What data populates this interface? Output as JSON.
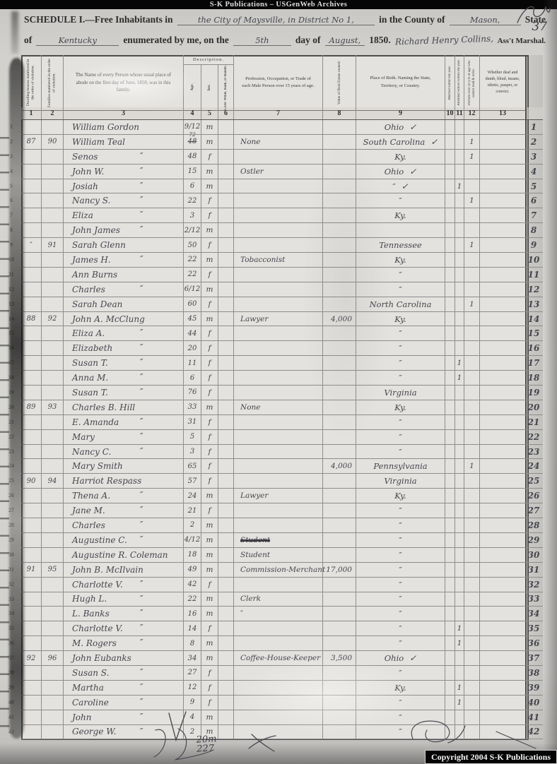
{
  "scan": {
    "archive_bar": "S-K Publications – USGenWeb Archives",
    "copyright": "Copyright 2004 S-K Publications",
    "page_number": "37",
    "tally_top": "20m",
    "tally_bottom": "227"
  },
  "title": {
    "printed_1": "SCHEDULE I.—Free Inhabitants in",
    "hw_place": "the City of Maysville, in District No 1,",
    "printed_2": "in the County of",
    "hw_county": "Mason,",
    "printed_3": "State",
    "printed_4": "of",
    "hw_state": "Kentucky",
    "printed_5": "enumerated by me, on the",
    "hw_day": "5th",
    "printed_6": "day of",
    "hw_month": "August,",
    "printed_7": "1850.",
    "hw_marshal": "Richard Henry Collins,",
    "printed_8": "Ass't Marshal."
  },
  "table": {
    "headers": {
      "dwelling": "Dwelling-houses numbered in the order of visitation.",
      "family": "Families numbered in the order of visitation.",
      "name": "The Name of every Person whose usual place of abode on the first day of June, 1850, was in this family.",
      "description": "Description.",
      "age": "Age.",
      "sex": "Sex.",
      "color": "Color. White, black, or mulatto.",
      "profession": "Profession, Occupation, or Trade of each Male Person over 15 years of age.",
      "value": "Value of Real Estate owned.",
      "birthplace": "Place of Birth. Naming the State, Territory, or Country.",
      "married": "Married within the year.",
      "school": "Attended School within the year.",
      "literacy": "Persons over 20 y'rs of age who cannot read & write.",
      "condition": "Whether deaf and dumb, blind, insane, idiotic, pauper, or convict."
    },
    "column_numbers": [
      "1",
      "2",
      "3",
      "4",
      "5",
      "6",
      "7",
      "8",
      "9",
      "10",
      "11",
      "12",
      "13"
    ],
    "rows": [
      {
        "n": "1",
        "name": "William Gordon",
        "age": "9/12",
        "sex": "m",
        "birth": "Ohio",
        "check": true
      },
      {
        "n": "2",
        "dw": "87",
        "fa": "90",
        "name": "William Teal",
        "age": "48",
        "age_sup": "72",
        "sex": "m",
        "occ": "None",
        "birth": "South Carolina",
        "check": true,
        "m12": "1"
      },
      {
        "n": "3",
        "name": "Senos",
        "ditto": true,
        "age": "48",
        "sex": "f",
        "birth": "Ky.",
        "m12": "1"
      },
      {
        "n": "4",
        "name": "John W.",
        "ditto": true,
        "age": "15",
        "sex": "m",
        "occ": "Ostler",
        "birth": "Ohio",
        "check": true
      },
      {
        "n": "5",
        "name": "Josiah",
        "ditto": true,
        "age": "6",
        "sex": "m",
        "birth": "″",
        "check": true,
        "m11": "1"
      },
      {
        "n": "6",
        "name": "Nancy S.",
        "ditto": true,
        "age": "22",
        "sex": "f",
        "birth": "″",
        "m12": "1"
      },
      {
        "n": "7",
        "name": "Eliza",
        "ditto": true,
        "age": "3",
        "sex": "f",
        "birth": "Ky."
      },
      {
        "n": "8",
        "name": "John James",
        "ditto": true,
        "age": "2/12",
        "sex": "m"
      },
      {
        "n": "9",
        "dw": "″",
        "fa": "91",
        "name": "Sarah Glenn",
        "age": "50",
        "sex": "f",
        "birth": "Tennessee",
        "m12": "1"
      },
      {
        "n": "10",
        "name": "James H.",
        "ditto": true,
        "age": "22",
        "sex": "m",
        "occ": "Tobacconist",
        "birth": "Ky."
      },
      {
        "n": "11",
        "name": "Ann Burns",
        "age": "22",
        "sex": "f",
        "birth": "″"
      },
      {
        "n": "12",
        "name": "Charles",
        "ditto": true,
        "age": "6/12",
        "sex": "m",
        "birth": "″"
      },
      {
        "n": "13",
        "name": "Sarah Dean",
        "age": "60",
        "sex": "f",
        "birth": "North Carolina",
        "m12": "1"
      },
      {
        "n": "14",
        "dw": "88",
        "fa": "92",
        "name": "John A. McClung",
        "age": "45",
        "sex": "m",
        "occ": "Lawyer",
        "val": "4,000",
        "birth": "Ky."
      },
      {
        "n": "15",
        "name": "Eliza A.",
        "ditto": true,
        "age": "44",
        "sex": "f",
        "birth": "″"
      },
      {
        "n": "16",
        "name": "Elizabeth",
        "ditto": true,
        "age": "20",
        "sex": "f",
        "birth": "″"
      },
      {
        "n": "17",
        "name": "Susan T.",
        "ditto": true,
        "age": "11",
        "sex": "f",
        "birth": "″",
        "m11": "1"
      },
      {
        "n": "18",
        "name": "Anna M.",
        "ditto": true,
        "age": "6",
        "sex": "f",
        "birth": "″",
        "m11": "1"
      },
      {
        "n": "19",
        "name": "Susan T.",
        "ditto": true,
        "age": "76",
        "sex": "f",
        "birth": "Virginia"
      },
      {
        "n": "20",
        "dw": "89",
        "fa": "93",
        "name": "Charles B. Hill",
        "age": "33",
        "sex": "m",
        "occ": "None",
        "birth": "Ky."
      },
      {
        "n": "21",
        "name": "E. Amanda",
        "ditto": true,
        "age": "31",
        "sex": "f",
        "birth": "″"
      },
      {
        "n": "22",
        "name": "Mary",
        "ditto": true,
        "age": "5",
        "sex": "f",
        "birth": "″"
      },
      {
        "n": "23",
        "name": "Nancy C.",
        "ditto": true,
        "age": "3",
        "sex": "f",
        "birth": "″"
      },
      {
        "n": "24",
        "name": "Mary Smith",
        "age": "65",
        "sex": "f",
        "val": "4,000",
        "birth": "Pennsylvania",
        "m12": "1"
      },
      {
        "n": "25",
        "dw": "90",
        "fa": "94",
        "name": "Harriot Respass",
        "age": "57",
        "sex": "f",
        "birth": "Virginia"
      },
      {
        "n": "26",
        "name": "Thena A.",
        "ditto": true,
        "age": "24",
        "sex": "m",
        "occ": "Lawyer",
        "birth": "Ky."
      },
      {
        "n": "27",
        "name": "Jane M.",
        "ditto": true,
        "age": "21",
        "sex": "f",
        "birth": "″"
      },
      {
        "n": "28",
        "name": "Charles",
        "ditto": true,
        "age": "2",
        "sex": "m",
        "birth": "″"
      },
      {
        "n": "29",
        "name": "Augustine C.",
        "ditto": true,
        "age": "4/12",
        "sex": "m",
        "occ": "Student",
        "occ_struck": true,
        "birth": "″"
      },
      {
        "n": "30",
        "name": "Augustine R. Coleman",
        "age": "18",
        "sex": "m",
        "occ": "Student",
        "birth": "″"
      },
      {
        "n": "31",
        "dw": "91",
        "fa": "95",
        "name": "John B. McIlvain",
        "age": "49",
        "sex": "m",
        "occ": "Commission-Merchant",
        "val": "17,000",
        "birth": "″"
      },
      {
        "n": "32",
        "name": "Charlotte V.",
        "ditto": true,
        "age": "42",
        "sex": "f",
        "birth": "″"
      },
      {
        "n": "33",
        "name": "Hugh L.",
        "ditto": true,
        "age": "22",
        "sex": "m",
        "occ": "Clerk",
        "birth": "″"
      },
      {
        "n": "34",
        "name": "L. Banks",
        "ditto": true,
        "age": "16",
        "sex": "m",
        "occ": "″",
        "birth": "″"
      },
      {
        "n": "35",
        "name": "Charlotte V.",
        "ditto": true,
        "age": "14",
        "sex": "f",
        "birth": "″",
        "m11": "1"
      },
      {
        "n": "36",
        "name": "M. Rogers",
        "ditto": true,
        "age": "8",
        "sex": "m",
        "birth": "″",
        "m11": "1"
      },
      {
        "n": "37",
        "dw": "92",
        "fa": "96",
        "name": "John Eubanks",
        "age": "34",
        "sex": "m",
        "occ": "Coffee-House-Keeper",
        "val": "3,500",
        "birth": "Ohio",
        "check": true
      },
      {
        "n": "38",
        "name": "Susan S.",
        "ditto": true,
        "age": "27",
        "sex": "f",
        "birth": "″"
      },
      {
        "n": "39",
        "name": "Martha",
        "ditto": true,
        "age": "12",
        "sex": "f",
        "birth": "Ky.",
        "m11": "1"
      },
      {
        "n": "40",
        "name": "Caroline",
        "ditto": true,
        "age": "9",
        "sex": "f",
        "birth": "″",
        "m11": "1"
      },
      {
        "n": "41",
        "name": "John",
        "ditto": true,
        "age": "4",
        "sex": "m",
        "birth": "″"
      },
      {
        "n": "42",
        "name": "George W.",
        "ditto": true,
        "age": "2",
        "sex": "m",
        "birth": "″"
      }
    ]
  }
}
